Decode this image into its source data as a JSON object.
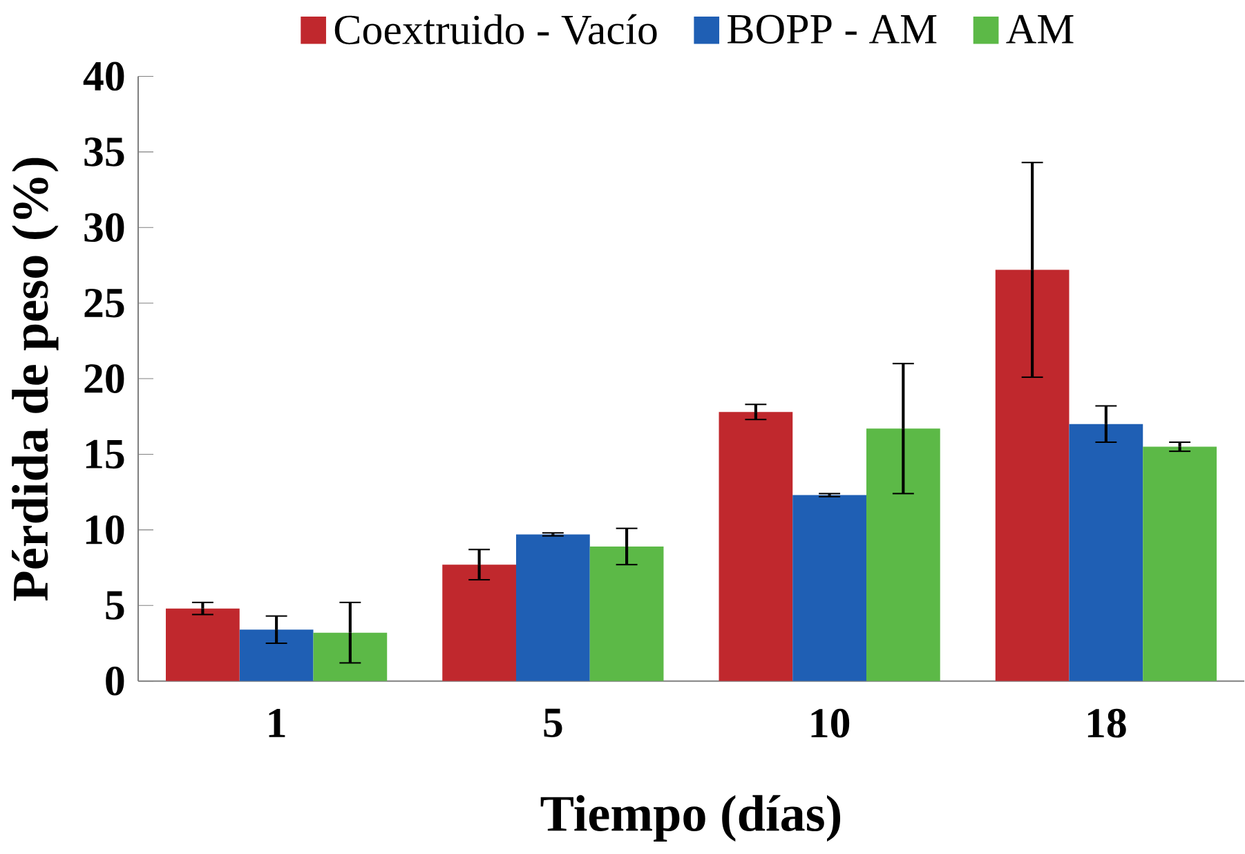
{
  "chart_data": {
    "type": "bar",
    "xlabel": "Tiempo (días)",
    "ylabel": "Pérdida de peso (%)",
    "categories": [
      "1",
      "5",
      "10",
      "18"
    ],
    "series": [
      {
        "name": "Coextruido - Vacío",
        "color": "#c0282d",
        "values": [
          4.8,
          7.7,
          17.8,
          27.2
        ],
        "errors": [
          0.4,
          1.0,
          0.5,
          7.1
        ]
      },
      {
        "name": "BOPP - AM",
        "color": "#1f5fb4",
        "values": [
          3.4,
          9.7,
          12.3,
          17.0
        ],
        "errors": [
          0.9,
          0.1,
          0.1,
          1.2
        ]
      },
      {
        "name": "AM",
        "color": "#5cb947",
        "values": [
          3.2,
          8.9,
          16.7,
          15.5
        ],
        "errors": [
          2.0,
          1.2,
          4.3,
          0.3
        ]
      }
    ],
    "ylim": [
      0,
      40
    ],
    "yticks": [
      0,
      5,
      10,
      15,
      20,
      25,
      30,
      35,
      40
    ],
    "grid": false,
    "legend": "top"
  }
}
